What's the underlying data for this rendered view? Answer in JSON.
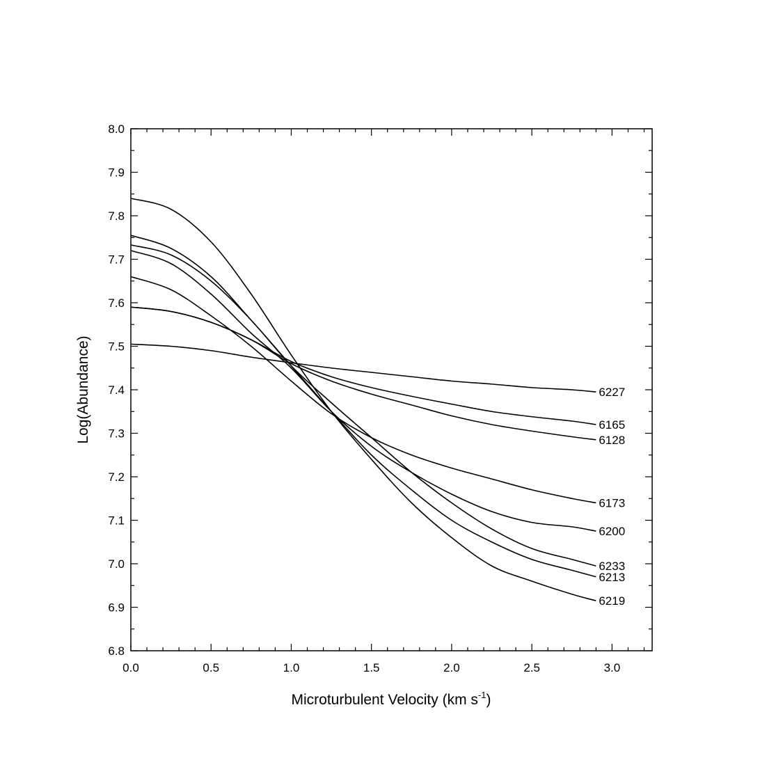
{
  "chart_data": {
    "type": "line",
    "title": "",
    "xlabel": "Microturbulent Velocity (km s",
    "xlabel_sup": "-1",
    "xlabel_close": ")",
    "ylabel": "Log(Abundance)",
    "xlim": [
      0.0,
      3.25
    ],
    "ylim": [
      6.8,
      8.0
    ],
    "grid": false,
    "x_ticks": [
      "0.0",
      "0.5",
      "1.0",
      "1.5",
      "2.0",
      "2.5",
      "3.0"
    ],
    "y_ticks": [
      "6.8",
      "6.9",
      "7.0",
      "7.1",
      "7.2",
      "7.3",
      "7.4",
      "7.5",
      "7.6",
      "7.7",
      "7.8",
      "7.9",
      "8.0"
    ],
    "x": [
      0.0,
      0.25,
      0.5,
      0.75,
      1.0,
      1.25,
      1.5,
      1.75,
      2.0,
      2.25,
      2.5,
      2.75,
      2.9
    ],
    "series": [
      {
        "name": "6227",
        "values": [
          7.505,
          7.5,
          7.49,
          7.475,
          7.462,
          7.45,
          7.44,
          7.43,
          7.42,
          7.413,
          7.405,
          7.4,
          7.395
        ]
      },
      {
        "name": "6165",
        "values": [
          7.59,
          7.58,
          7.555,
          7.515,
          7.465,
          7.43,
          7.405,
          7.385,
          7.367,
          7.35,
          7.338,
          7.328,
          7.32
        ]
      },
      {
        "name": "6128",
        "values": [
          7.59,
          7.58,
          7.555,
          7.515,
          7.46,
          7.42,
          7.39,
          7.365,
          7.34,
          7.32,
          7.305,
          7.292,
          7.285
        ]
      },
      {
        "name": "6173",
        "values": [
          7.66,
          7.63,
          7.57,
          7.5,
          7.42,
          7.345,
          7.29,
          7.25,
          7.22,
          7.195,
          7.17,
          7.15,
          7.14
        ]
      },
      {
        "name": "6200",
        "values": [
          7.72,
          7.69,
          7.62,
          7.53,
          7.45,
          7.35,
          7.27,
          7.21,
          7.16,
          7.12,
          7.095,
          7.085,
          7.075
        ]
      },
      {
        "name": "6233",
        "values": [
          7.733,
          7.71,
          7.65,
          7.56,
          7.455,
          7.37,
          7.29,
          7.21,
          7.14,
          7.08,
          7.035,
          7.01,
          6.995
        ]
      },
      {
        "name": "6213",
        "values": [
          7.755,
          7.725,
          7.66,
          7.56,
          7.455,
          7.35,
          7.25,
          7.17,
          7.1,
          7.05,
          7.01,
          6.985,
          6.97
        ]
      },
      {
        "name": "6219",
        "values": [
          7.84,
          7.815,
          7.74,
          7.62,
          7.48,
          7.35,
          7.24,
          7.14,
          7.06,
          6.995,
          6.96,
          6.93,
          6.915
        ]
      }
    ]
  }
}
